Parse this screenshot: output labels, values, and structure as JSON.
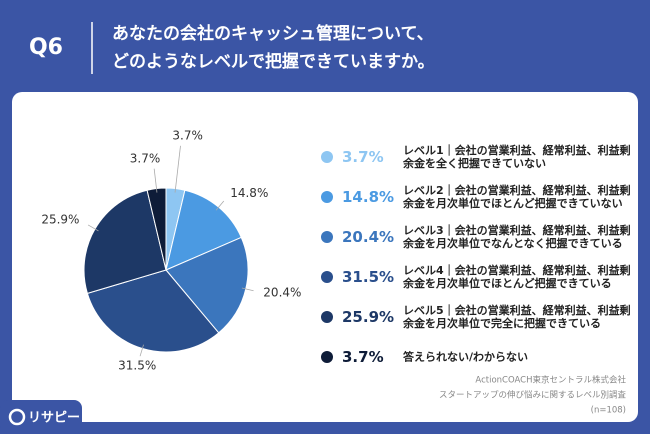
{
  "question": "Q6",
  "title_lines": [
    "あなたの会社のキャッシュ管理について、",
    "どのようなレベルで把握できていますか。"
  ],
  "chart_data": {
    "type": "pie",
    "categories": [
      "レベル1｜会社の営業利益、経常利益、利益剰余金を全く把握できていない",
      "レベル2｜会社の営業利益、経常利益、利益剰余金を月次単位でほとんど把握できていない",
      "レベル3｜会社の営業利益、経常利益、利益剰余金を月次単位でなんとなく把握できている",
      "レベル4｜会社の営業利益、経常利益、利益剰余金を月次単位でほとんど把握できている",
      "レベル5｜会社の営業利益、経常利益、利益剰余金を月次単位で完全に把握できている",
      "答えられない/わからない"
    ],
    "values": [
      3.7,
      14.8,
      20.4,
      31.5,
      25.9,
      3.7
    ],
    "value_labels": [
      "3.7%",
      "14.8%",
      "20.4%",
      "31.5%",
      "25.9%",
      "3.7%"
    ],
    "colors": [
      "#8ec6f2",
      "#4b9ae2",
      "#3b76bd",
      "#2a4f8c",
      "#1d3866",
      "#0e1c38"
    ]
  },
  "source_lines": [
    "ActionCOACH東京セントラル株式会社",
    "スタートアップの伸び悩みに関するレベル別調査",
    "(n=108)"
  ],
  "brand": "リサピー"
}
